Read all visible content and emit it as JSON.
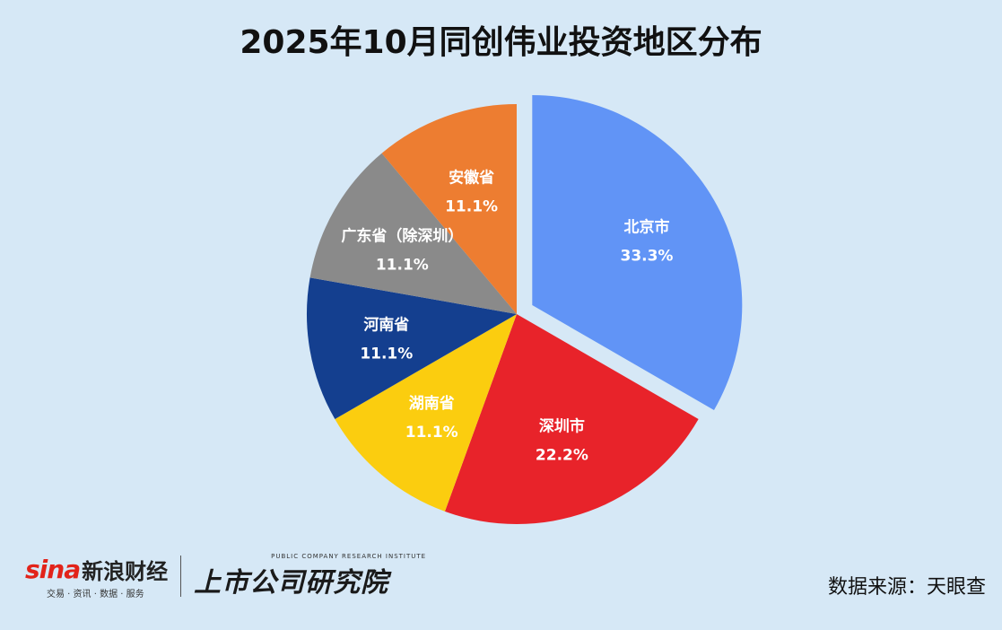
{
  "title": "2025年10月同创伟业投资地区分布",
  "footer": {
    "sina_logo": "sina",
    "sina_name": "新浪财经",
    "sina_sub": "交易 · 资讯 · 数据 · 服务",
    "research_en": "PUBLIC COMPANY RESEARCH INSTITUTE",
    "research_cn": "上市公司研究院",
    "source": "数据来源：天眼查"
  },
  "chart_data": {
    "type": "pie",
    "title": "2025年10月同创伟业投资地区分布",
    "slices": [
      {
        "label": "北京市",
        "value": 33.3,
        "value_label": "33.3%",
        "color": "#6194f6",
        "exploded": true
      },
      {
        "label": "深圳市",
        "value": 22.2,
        "value_label": "22.2%",
        "color": "#e8232a"
      },
      {
        "label": "湖南省",
        "value": 11.1,
        "value_label": "11.1%",
        "color": "#fbcd0f"
      },
      {
        "label": "河南省",
        "value": 11.1,
        "value_label": "11.1%",
        "color": "#143f8f"
      },
      {
        "label": "广东省（除深圳）",
        "value": 11.1,
        "value_label": "11.1%",
        "color": "#8a8a8a"
      },
      {
        "label": "安徽省",
        "value": 11.1,
        "value_label": "11.1%",
        "color": "#ed7d31"
      }
    ]
  }
}
